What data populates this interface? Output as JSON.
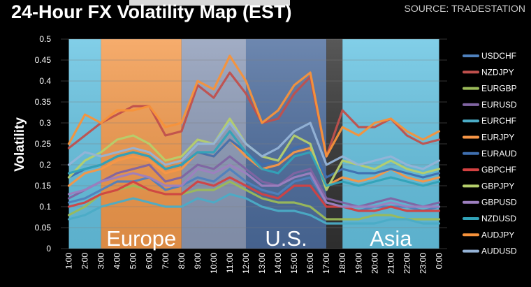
{
  "header": {
    "title": "24-Hour FX Volatility Map (EST)",
    "source": "SOURCE: TRADESTATION"
  },
  "chart_data": {
    "type": "line",
    "ylabel": "Volatility",
    "xlabel": "",
    "ylim": [
      0,
      0.5
    ],
    "ytick_step": 0.05,
    "y_ticks": [
      "0",
      "0.05",
      "0.1",
      "0.15",
      "0.2",
      "0.25",
      "0.3",
      "0.35",
      "0.4",
      "0.45",
      "0.5"
    ],
    "categories": [
      "1:00",
      "2:00",
      "3:00",
      "4:00",
      "5:00",
      "6:00",
      "7:00",
      "8:00",
      "9:00",
      "10:00",
      "11:00",
      "12:00",
      "13:00",
      "14:00",
      "15:00",
      "16:00",
      "17:00",
      "18:00",
      "19:00",
      "20:00",
      "21:00",
      "22:00",
      "23:00",
      "0:00"
    ],
    "sessions": [
      {
        "label": "",
        "from": 1,
        "to": 3,
        "color": "#66c4e3"
      },
      {
        "label": "Europe",
        "from": 3,
        "to": 8,
        "color": "#f49a4c"
      },
      {
        "label": "",
        "from": 8,
        "to": 12,
        "color": "#8d9bb8"
      },
      {
        "label": "U.S.",
        "from": 12,
        "to": 17,
        "color": "#4d6d9e"
      },
      {
        "label": "",
        "from": 17,
        "to": 18,
        "color": "#333333"
      },
      {
        "label": "Asia",
        "from": 18,
        "to": 24,
        "color": "#66c4e3"
      }
    ],
    "grid": true,
    "legend_position": "right",
    "series": [
      {
        "name": "USDCHF",
        "color": "#4f81bd",
        "values": [
          0.11,
          0.12,
          0.14,
          0.16,
          0.16,
          0.17,
          0.14,
          0.15,
          0.17,
          0.16,
          0.19,
          0.16,
          0.14,
          0.13,
          0.16,
          0.17,
          0.11,
          0.1,
          0.09,
          0.1,
          0.1,
          0.1,
          0.09,
          0.1
        ]
      },
      {
        "name": "NZDJPY",
        "color": "#c0504d",
        "values": [
          0.24,
          0.27,
          0.3,
          0.32,
          0.34,
          0.34,
          0.27,
          0.28,
          0.39,
          0.36,
          0.42,
          0.37,
          0.3,
          0.31,
          0.37,
          0.41,
          0.22,
          0.33,
          0.29,
          0.29,
          0.31,
          0.27,
          0.25,
          0.26
        ]
      },
      {
        "name": "EURGBP",
        "color": "#9bbb59",
        "values": [
          0.08,
          0.1,
          0.13,
          0.14,
          0.15,
          0.14,
          0.13,
          0.13,
          0.14,
          0.14,
          0.16,
          0.14,
          0.12,
          0.11,
          0.11,
          0.1,
          0.07,
          0.07,
          0.07,
          0.08,
          0.08,
          0.07,
          0.07,
          0.07
        ]
      },
      {
        "name": "EURUSD",
        "color": "#8064a2",
        "values": [
          0.12,
          0.14,
          0.16,
          0.18,
          0.19,
          0.2,
          0.16,
          0.17,
          0.2,
          0.19,
          0.22,
          0.19,
          0.16,
          0.15,
          0.18,
          0.19,
          0.12,
          0.11,
          0.1,
          0.11,
          0.12,
          0.11,
          0.1,
          0.11
        ]
      },
      {
        "name": "EURCHF",
        "color": "#4bacc6",
        "values": [
          0.07,
          0.08,
          0.1,
          0.11,
          0.12,
          0.11,
          0.1,
          0.1,
          0.12,
          0.11,
          0.13,
          0.12,
          0.1,
          0.09,
          0.09,
          0.08,
          0.06,
          0.06,
          0.06,
          0.06,
          0.07,
          0.07,
          0.06,
          0.06
        ]
      },
      {
        "name": "EURJPY",
        "color": "#f79646",
        "values": [
          0.15,
          0.18,
          0.19,
          0.21,
          0.22,
          0.21,
          0.18,
          0.19,
          0.23,
          0.22,
          0.26,
          0.22,
          0.19,
          0.2,
          0.23,
          0.24,
          0.15,
          0.17,
          0.16,
          0.17,
          0.19,
          0.17,
          0.16,
          0.17
        ]
      },
      {
        "name": "EURAUD",
        "color": "#3f6fb0",
        "values": [
          0.17,
          0.19,
          0.2,
          0.22,
          0.23,
          0.22,
          0.19,
          0.2,
          0.23,
          0.22,
          0.26,
          0.23,
          0.2,
          0.21,
          0.24,
          0.25,
          0.17,
          0.19,
          0.18,
          0.18,
          0.19,
          0.18,
          0.17,
          0.18
        ]
      },
      {
        "name": "GBPCHF",
        "color": "#d34141",
        "values": [
          0.1,
          0.11,
          0.13,
          0.14,
          0.16,
          0.14,
          0.13,
          0.13,
          0.16,
          0.15,
          0.17,
          0.15,
          0.13,
          0.12,
          0.15,
          0.15,
          0.1,
          0.1,
          0.09,
          0.09,
          0.1,
          0.09,
          0.09,
          0.09
        ]
      },
      {
        "name": "GBPJPY",
        "color": "#b5cf6b",
        "values": [
          0.17,
          0.21,
          0.23,
          0.26,
          0.27,
          0.25,
          0.21,
          0.22,
          0.26,
          0.25,
          0.31,
          0.25,
          0.22,
          0.21,
          0.27,
          0.25,
          0.14,
          0.21,
          0.2,
          0.19,
          0.21,
          0.19,
          0.18,
          0.19
        ]
      },
      {
        "name": "GBPUSD",
        "color": "#9d7fbf",
        "values": [
          0.13,
          0.14,
          0.16,
          0.17,
          0.18,
          0.17,
          0.15,
          0.15,
          0.19,
          0.18,
          0.2,
          0.18,
          0.15,
          0.15,
          0.17,
          0.18,
          0.11,
          0.1,
          0.1,
          0.1,
          0.11,
          0.1,
          0.1,
          0.1
        ]
      },
      {
        "name": "NZDUSD",
        "color": "#31a3b8",
        "values": [
          0.18,
          0.19,
          0.2,
          0.22,
          0.23,
          0.22,
          0.19,
          0.2,
          0.23,
          0.23,
          0.28,
          0.23,
          0.19,
          0.18,
          0.22,
          0.23,
          0.15,
          0.16,
          0.15,
          0.16,
          0.17,
          0.16,
          0.15,
          0.16
        ]
      },
      {
        "name": "AUDJPY",
        "color": "#f7923a",
        "values": [
          0.25,
          0.32,
          0.3,
          0.33,
          0.33,
          0.34,
          0.29,
          0.3,
          0.4,
          0.38,
          0.46,
          0.4,
          0.3,
          0.33,
          0.39,
          0.42,
          0.22,
          0.29,
          0.27,
          0.3,
          0.31,
          0.28,
          0.26,
          0.28
        ]
      },
      {
        "name": "AUDUSD",
        "color": "#95b3d7",
        "values": [
          0.2,
          0.23,
          0.22,
          0.23,
          0.24,
          0.23,
          0.2,
          0.21,
          0.25,
          0.25,
          0.3,
          0.25,
          0.22,
          0.24,
          0.28,
          0.3,
          0.2,
          0.22,
          0.2,
          0.21,
          0.22,
          0.2,
          0.19,
          0.21
        ]
      }
    ]
  }
}
